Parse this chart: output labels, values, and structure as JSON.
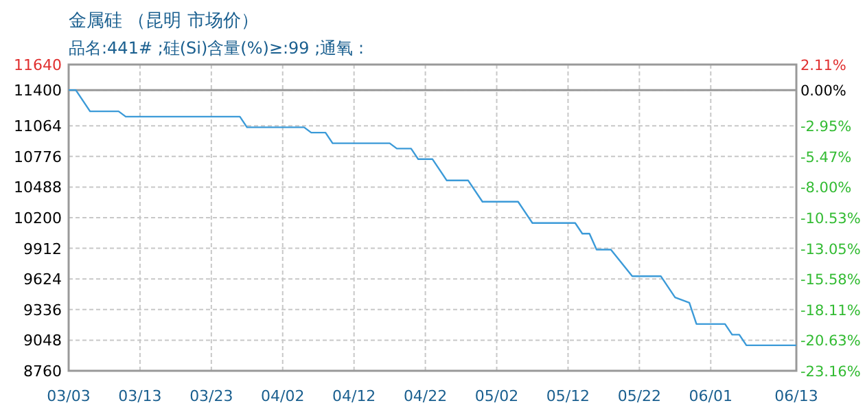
{
  "chart_data": {
    "type": "line",
    "title": "金属硅 （昆明 市场价）",
    "subtitle": "品名:441# ;硅(Si)含量(%)≥:99 ;通氧 :",
    "x": [
      "--03-03",
      "--03-04",
      "--03-06",
      "--03-10",
      "--03-11",
      "--03-27",
      "--03-28",
      "--04-05",
      "--04-06",
      "--04-08",
      "--04-09",
      "--04-17",
      "--04-18",
      "--04-20",
      "--04-21",
      "--04-23",
      "--04-25",
      "--04-28",
      "--04-30",
      "--05-05",
      "--05-07",
      "--05-13",
      "--05-14",
      "--05-15",
      "--05-16",
      "--05-18",
      "--05-21",
      "--05-25",
      "--05-27",
      "--05-29",
      "--05-30",
      "--06-03",
      "--06-04",
      "--06-05",
      "--06-06",
      "--06-13"
    ],
    "values": [
      11400,
      11400,
      11200,
      11200,
      11150,
      11150,
      11050,
      11050,
      11000,
      11000,
      10900,
      10900,
      10850,
      10850,
      10750,
      10750,
      10550,
      10550,
      10350,
      10350,
      10150,
      10150,
      10050,
      10050,
      9900,
      9900,
      9650,
      9650,
      9450,
      9400,
      9200,
      9200,
      9100,
      9100,
      9000,
      9000
    ],
    "color": "#3b9ad8",
    "marker": "none",
    "line_style": "solid",
    "grid": true,
    "xlim": [
      "--03-03",
      "--06-13"
    ],
    "xticks": [
      {
        "value": "--03-03",
        "label": "03/03"
      },
      {
        "value": "--03-13",
        "label": "03/13"
      },
      {
        "value": "--03-23",
        "label": "03/23"
      },
      {
        "value": "--04-02",
        "label": "04/02"
      },
      {
        "value": "--04-12",
        "label": "04/12"
      },
      {
        "value": "--04-22",
        "label": "04/22"
      },
      {
        "value": "--05-02",
        "label": "05/02"
      },
      {
        "value": "--05-12",
        "label": "05/12"
      },
      {
        "value": "--05-22",
        "label": "05/22"
      },
      {
        "value": "--06-01",
        "label": "06/01"
      },
      {
        "value": "--06-13",
        "label": "06/13"
      }
    ],
    "ylim": [
      8760,
      11640
    ],
    "yticks": [
      8760,
      9048,
      9336,
      9624,
      9912,
      10200,
      10488,
      10776,
      11064,
      11400,
      11640
    ],
    "y2lim": [
      -23.16,
      2.11
    ],
    "y2ticks": [
      {
        "value": -23.16,
        "label": "-23.16%"
      },
      {
        "value": -20.63,
        "label": "-20.63%"
      },
      {
        "value": -18.11,
        "label": "-18.11%"
      },
      {
        "value": -15.58,
        "label": "-15.58%"
      },
      {
        "value": -13.05,
        "label": "-13.05%"
      },
      {
        "value": -10.53,
        "label": "-10.53%"
      },
      {
        "value": -8.0,
        "label": "-8.00%"
      },
      {
        "value": -5.47,
        "label": "-5.47%"
      },
      {
        "value": -2.95,
        "label": "-2.95%"
      },
      {
        "value": 0,
        "label": "0.00%"
      },
      {
        "value": 2.11,
        "label": "2.11%"
      }
    ],
    "ref_lines": [
      {
        "axis": "y",
        "value": 11400,
        "color": "#999999"
      }
    ]
  }
}
